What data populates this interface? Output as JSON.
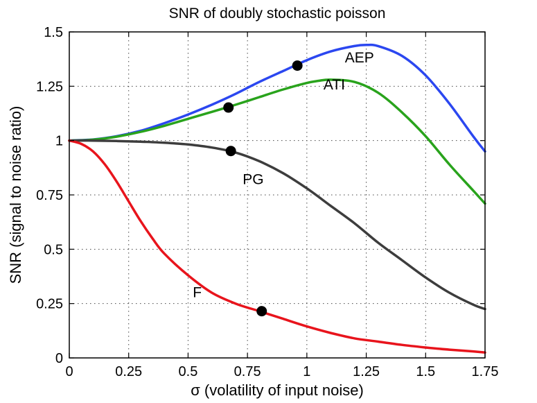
{
  "chart_data": {
    "type": "line",
    "title": "SNR of doubly stochastic poisson",
    "xlabel": "σ (volatility of input noise)",
    "ylabel": "SNR (signal to noise ratio)",
    "xlim": [
      0,
      1.75
    ],
    "ylim": [
      0,
      1.5
    ],
    "grid": true,
    "xticks": [
      0,
      0.25,
      0.5,
      0.75,
      1,
      1.25,
      1.5,
      1.75
    ],
    "xtick_labels": [
      "0",
      "0.25",
      "0.5",
      "0.75",
      "1",
      "1.25",
      "1.5",
      "1.75"
    ],
    "yticks": [
      0,
      0.25,
      0.5,
      0.75,
      1,
      1.25,
      1.5
    ],
    "ytick_labels": [
      "0",
      "0.25",
      "0.5",
      "0.75",
      "1",
      "1.25",
      "1.5"
    ],
    "series": [
      {
        "name": "AEP",
        "color": "#2b47f0",
        "x": [
          0,
          0.1,
          0.2,
          0.3,
          0.4,
          0.5,
          0.6,
          0.7,
          0.8,
          0.9,
          1.0,
          1.1,
          1.2,
          1.25,
          1.3,
          1.4,
          1.5,
          1.6,
          1.7,
          1.75
        ],
        "y": [
          1.0,
          1.005,
          1.02,
          1.045,
          1.08,
          1.12,
          1.165,
          1.215,
          1.27,
          1.32,
          1.37,
          1.41,
          1.435,
          1.44,
          1.435,
          1.39,
          1.3,
          1.17,
          1.02,
          0.95
        ],
        "marker": {
          "x": 0.96,
          "y": 1.345
        }
      },
      {
        "name": "ATI",
        "color": "#29a31c",
        "x": [
          0,
          0.1,
          0.2,
          0.3,
          0.4,
          0.5,
          0.6,
          0.7,
          0.8,
          0.9,
          1.0,
          1.05,
          1.1,
          1.2,
          1.3,
          1.4,
          1.5,
          1.6,
          1.7,
          1.75
        ],
        "y": [
          1.0,
          1.004,
          1.018,
          1.04,
          1.068,
          1.1,
          1.132,
          1.165,
          1.2,
          1.235,
          1.265,
          1.275,
          1.28,
          1.27,
          1.22,
          1.13,
          1.02,
          0.89,
          0.77,
          0.71
        ],
        "marker": {
          "x": 0.67,
          "y": 1.152
        }
      },
      {
        "name": "PG",
        "color": "#3d3d3d",
        "x": [
          0,
          0.1,
          0.2,
          0.3,
          0.4,
          0.5,
          0.6,
          0.7,
          0.8,
          0.9,
          1.0,
          1.1,
          1.2,
          1.3,
          1.4,
          1.5,
          1.6,
          1.7,
          1.75
        ],
        "y": [
          1.0,
          1.0,
          0.998,
          0.995,
          0.99,
          0.982,
          0.968,
          0.945,
          0.905,
          0.85,
          0.78,
          0.7,
          0.62,
          0.53,
          0.45,
          0.37,
          0.3,
          0.245,
          0.225
        ],
        "marker": {
          "x": 0.68,
          "y": 0.952
        }
      },
      {
        "name": "F",
        "color": "#e8141c",
        "x": [
          0,
          0.05,
          0.1,
          0.15,
          0.2,
          0.25,
          0.3,
          0.35,
          0.4,
          0.5,
          0.6,
          0.7,
          0.8,
          0.9,
          1.0,
          1.1,
          1.2,
          1.3,
          1.4,
          1.5,
          1.6,
          1.7,
          1.75
        ],
        "y": [
          1.0,
          0.985,
          0.95,
          0.89,
          0.81,
          0.72,
          0.63,
          0.55,
          0.48,
          0.38,
          0.3,
          0.25,
          0.215,
          0.18,
          0.145,
          0.115,
          0.09,
          0.075,
          0.06,
          0.048,
          0.038,
          0.03,
          0.025
        ],
        "marker": {
          "x": 0.81,
          "y": 0.215
        }
      }
    ],
    "annotations": [
      {
        "text": "AEP",
        "x": 1.16,
        "y": 1.36
      },
      {
        "text": "ATI",
        "x": 1.07,
        "y": 1.235
      },
      {
        "text": "PG",
        "x": 0.73,
        "y": 0.8
      },
      {
        "text": "F",
        "x": 0.52,
        "y": 0.28
      }
    ]
  }
}
